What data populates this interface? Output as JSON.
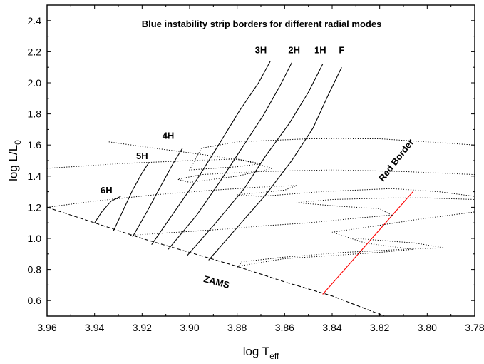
{
  "chart_data": {
    "type": "line",
    "title": "Blue instability strip borders for different radial modes",
    "xlabel": "log T",
    "xlabel_sub": "eff",
    "ylabel": "log L/L",
    "ylabel_sub": "0",
    "xlim": [
      3.96,
      3.78
    ],
    "ylim": [
      0.5,
      2.5
    ],
    "x_reversed": true,
    "grid": false,
    "x_ticks": [
      3.96,
      3.94,
      3.92,
      3.9,
      3.88,
      3.86,
      3.84,
      3.82,
      3.8,
      3.78
    ],
    "x_tick_labels": [
      "3.96",
      "3.94",
      "3.92",
      "3.90",
      "3.88",
      "3.86",
      "3.84",
      "3.82",
      "3.80",
      "3.78"
    ],
    "y_ticks": [
      0.6,
      0.8,
      1.0,
      1.2,
      1.4,
      1.6,
      1.8,
      2.0,
      2.2,
      2.4
    ],
    "y_tick_labels": [
      "0.6",
      "0.8",
      "1.0",
      "1.2",
      "1.4",
      "1.6",
      "1.8",
      "2.0",
      "2.2",
      "2.4"
    ],
    "series": [
      {
        "name": "F",
        "style": "solid",
        "color": "#000000",
        "x": [
          3.892,
          3.88,
          3.868,
          3.857,
          3.848,
          3.842,
          3.836
        ],
        "y": [
          0.86,
          1.07,
          1.28,
          1.5,
          1.71,
          1.91,
          2.1
        ]
      },
      {
        "name": "1H",
        "style": "solid",
        "color": "#000000",
        "x": [
          3.901,
          3.889,
          3.877,
          3.868,
          3.858,
          3.85,
          3.844
        ],
        "y": [
          0.89,
          1.1,
          1.32,
          1.53,
          1.74,
          1.94,
          2.12
        ]
      },
      {
        "name": "2H",
        "style": "solid",
        "color": "#000000",
        "x": [
          3.909,
          3.897,
          3.887,
          3.878,
          3.869,
          3.862,
          3.857
        ],
        "y": [
          0.93,
          1.15,
          1.37,
          1.58,
          1.79,
          1.98,
          2.13
        ]
      },
      {
        "name": "3H",
        "style": "solid",
        "color": "#000000",
        "x": [
          3.916,
          3.906,
          3.896,
          3.887,
          3.879,
          3.871,
          3.866
        ],
        "y": [
          0.96,
          1.18,
          1.4,
          1.62,
          1.82,
          2.0,
          2.14
        ]
      },
      {
        "name": "4H",
        "style": "solid",
        "color": "#000000",
        "x": [
          3.924,
          3.918,
          3.912,
          3.907,
          3.903
        ],
        "y": [
          1.01,
          1.17,
          1.34,
          1.48,
          1.58
        ]
      },
      {
        "name": "5H",
        "style": "solid",
        "color": "#000000",
        "x": [
          3.932,
          3.928,
          3.924,
          3.92,
          3.917
        ],
        "y": [
          1.05,
          1.18,
          1.31,
          1.42,
          1.49
        ]
      },
      {
        "name": "6H",
        "style": "solid",
        "color": "#000000",
        "x": [
          3.94,
          3.937,
          3.933,
          3.929
        ],
        "y": [
          1.1,
          1.17,
          1.24,
          1.27
        ]
      },
      {
        "name": "Red Border",
        "style": "solid",
        "color": "#ff0000",
        "x": [
          3.844,
          3.806
        ],
        "y": [
          0.64,
          1.3
        ]
      },
      {
        "name": "ZAMS",
        "style": "dashed",
        "color": "#000000",
        "x": [
          3.96,
          3.94,
          3.92,
          3.9,
          3.88,
          3.86,
          3.84,
          3.818
        ],
        "y": [
          1.2,
          1.1,
          1.0,
          0.91,
          0.82,
          0.72,
          0.63,
          0.5
        ]
      },
      {
        "name": "",
        "style": "dotted",
        "color": "#000000",
        "x": [
          3.96,
          3.93,
          3.9,
          3.88,
          3.87,
          3.88,
          3.9,
          3.895,
          3.88,
          3.85,
          3.82,
          3.8,
          3.78
        ],
        "y": [
          1.45,
          1.48,
          1.5,
          1.51,
          1.48,
          1.46,
          1.44,
          1.58,
          1.62,
          1.64,
          1.64,
          1.62,
          1.6
        ]
      },
      {
        "name": "",
        "style": "dotted",
        "color": "#000000",
        "x": [
          3.934,
          3.915,
          3.895,
          3.877,
          3.865,
          3.88,
          3.9,
          3.905,
          3.895,
          3.87,
          3.84,
          3.81,
          3.78
        ],
        "y": [
          1.62,
          1.58,
          1.54,
          1.5,
          1.45,
          1.4,
          1.36,
          1.38,
          1.41,
          1.43,
          1.44,
          1.43,
          1.41
        ]
      },
      {
        "name": "",
        "style": "dotted",
        "color": "#000000",
        "x": [
          3.96,
          3.94,
          3.915,
          3.89,
          3.87,
          3.855,
          3.86,
          3.88,
          3.87,
          3.845,
          3.815,
          3.795,
          3.78
        ],
        "y": [
          1.2,
          1.24,
          1.28,
          1.31,
          1.33,
          1.34,
          1.31,
          1.28,
          1.27,
          1.3,
          1.32,
          1.3,
          1.27
        ]
      },
      {
        "name": "",
        "style": "dotted",
        "color": "#000000",
        "x": [
          3.925,
          3.905,
          3.885,
          3.87,
          3.85,
          3.83,
          3.815,
          3.82,
          3.84,
          3.855,
          3.84,
          3.815,
          3.8,
          3.78
        ],
        "y": [
          1.02,
          1.04,
          1.06,
          1.08,
          1.1,
          1.13,
          1.15,
          1.19,
          1.21,
          1.23,
          1.25,
          1.26,
          1.26,
          1.25
        ]
      },
      {
        "name": "",
        "style": "dotted",
        "color": "#000000",
        "x": [
          3.88,
          3.86,
          3.84,
          3.82,
          3.806,
          3.826,
          3.84,
          3.822,
          3.805,
          3.79,
          3.78
        ],
        "y": [
          0.82,
          0.87,
          0.89,
          0.91,
          0.93,
          0.97,
          1.04,
          1.08,
          1.12,
          1.15,
          1.17
        ]
      },
      {
        "name": "",
        "style": "dotted",
        "color": "#000000",
        "x": [
          3.88,
          3.878,
          3.86,
          3.835,
          3.81,
          3.793,
          3.805,
          3.83
        ],
        "y": [
          0.81,
          0.85,
          0.88,
          0.91,
          0.93,
          0.94,
          0.97,
          1.0
        ]
      }
    ],
    "mode_labels": [
      {
        "text": "3H",
        "x": 3.87,
        "y": 2.19
      },
      {
        "text": "2H",
        "x": 3.856,
        "y": 2.19
      },
      {
        "text": "1H",
        "x": 3.845,
        "y": 2.19
      },
      {
        "text": "F",
        "x": 3.836,
        "y": 2.19
      },
      {
        "text": "4H",
        "x": 3.909,
        "y": 1.64
      },
      {
        "text": "5H",
        "x": 3.92,
        "y": 1.51
      },
      {
        "text": "6H",
        "x": 3.935,
        "y": 1.29
      }
    ],
    "annotations": [
      {
        "text": "ZAMS",
        "x": 3.889,
        "y": 0.7,
        "rotate": 15
      },
      {
        "text": "Red Border",
        "x": 3.812,
        "y": 1.49,
        "rotate": -52,
        "color": "#ff0000"
      }
    ]
  }
}
